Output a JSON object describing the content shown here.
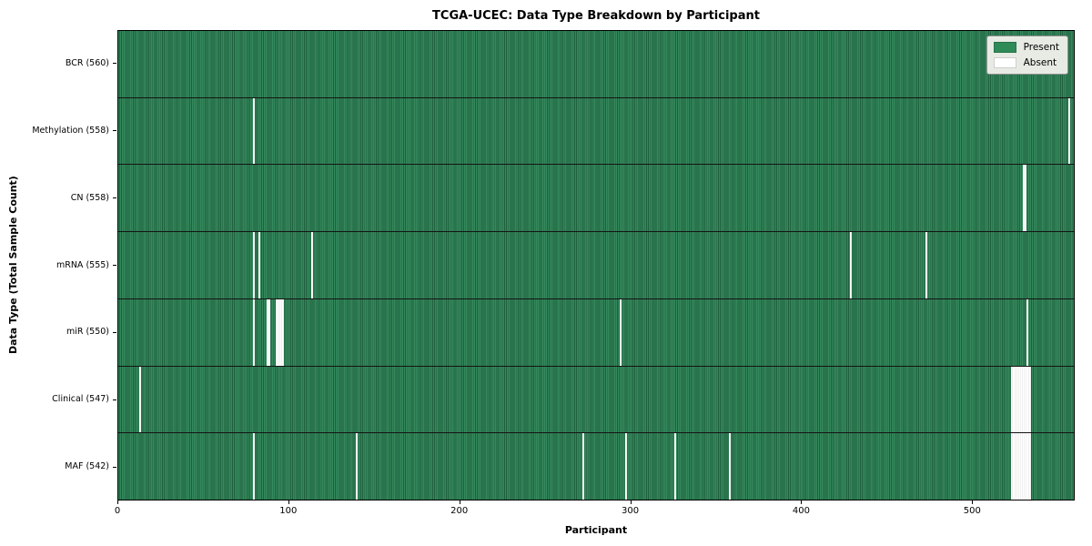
{
  "title": "TCGA-UCEC: Data Type Breakdown by Participant",
  "xlabel": "Participant",
  "ylabel": "Data Type (Total Sample Count)",
  "legend": {
    "present_label": "Present",
    "absent_label": "Absent"
  },
  "colors": {
    "present": "#2e8b57",
    "present_edge": "#205f3e",
    "absent": "#ffffff",
    "legend_bg": "#e7ebe4",
    "row_separator": "#141414"
  },
  "chart_data": {
    "type": "heatmap",
    "title": "TCGA-UCEC: Data Type Breakdown by Participant",
    "xlabel": "Participant",
    "ylabel": "Data Type (Total Sample Count)",
    "legend_entries": [
      "Present",
      "Absent"
    ],
    "legend_position": "upper right",
    "n_participants": 560,
    "x_range": [
      0,
      560
    ],
    "x_ticks": [
      0,
      100,
      200,
      300,
      400,
      500
    ],
    "rows": [
      {
        "label": "BCR (560)",
        "name": "bcr",
        "present_count": 560,
        "absent_participants": []
      },
      {
        "label": "Methylation (558)",
        "name": "methylation",
        "present_count": 558,
        "absent_participants": [
          79,
          557
        ]
      },
      {
        "label": "CN (558)",
        "name": "cn",
        "present_count": 558,
        "absent_participants": [
          530,
          531
        ]
      },
      {
        "label": "mRNA (555)",
        "name": "mrna",
        "present_count": 555,
        "absent_participants": [
          79,
          82,
          113,
          429,
          473
        ]
      },
      {
        "label": "miR (550)",
        "name": "mir",
        "present_count": 550,
        "absent_participants": [
          79,
          87,
          88,
          92,
          93,
          94,
          95,
          96,
          294,
          532
        ]
      },
      {
        "label": "Clinical (547)",
        "name": "clinical",
        "present_count": 547,
        "absent_participants": [
          12,
          523,
          524,
          525,
          526,
          527,
          528,
          529,
          530,
          531,
          532,
          533,
          534
        ]
      },
      {
        "label": "MAF (542)",
        "name": "maf",
        "present_count": 542,
        "absent_participants": [
          79,
          139,
          272,
          297,
          326,
          358,
          523,
          524,
          525,
          526,
          527,
          528,
          529,
          530,
          531,
          532,
          533,
          534
        ]
      }
    ]
  }
}
